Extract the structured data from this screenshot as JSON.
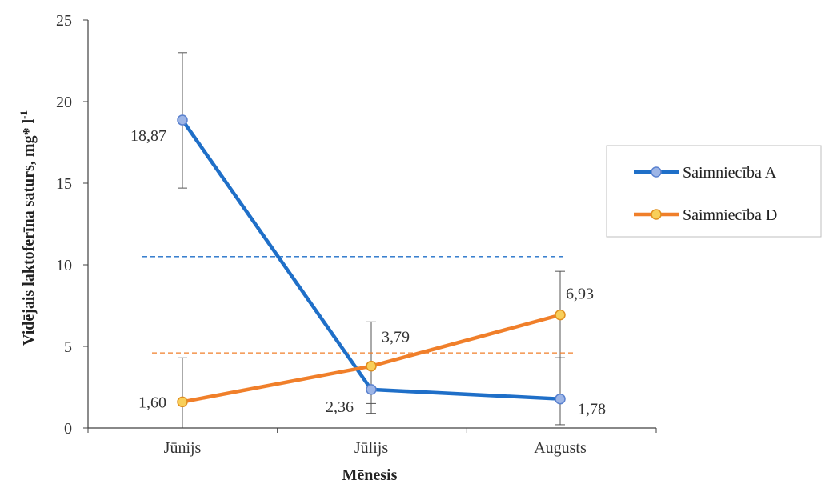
{
  "chart_data": {
    "type": "line",
    "categories": [
      "Jūnijs",
      "Jūlijs",
      "Augusts"
    ],
    "series": [
      {
        "name": "Saimniecība A",
        "color": "#1f6fc8",
        "marker_fill": "#9db5e6",
        "marker_stroke": "#5b82cf",
        "values": [
          18.87,
          2.36,
          1.78
        ],
        "labels": [
          "18,87",
          "2,36",
          "1,78"
        ],
        "error": [
          [
            14.7,
            23.0
          ],
          [
            0.9,
            6.5
          ],
          [
            0.2,
            4.3
          ]
        ],
        "mean_line": 10.5
      },
      {
        "name": "Saimniecība D",
        "color": "#f07f2a",
        "marker_fill": "#f8cf5a",
        "marker_stroke": "#e09020",
        "values": [
          1.6,
          3.79,
          6.93
        ],
        "labels": [
          "1,60",
          "3,79",
          "6,93"
        ],
        "error": [
          [
            -0.5,
            4.3
          ],
          [
            1.5,
            6.5
          ],
          [
            4.3,
            9.6
          ]
        ],
        "mean_line": 4.6
      }
    ],
    "ylim": [
      0,
      25
    ],
    "yticks": [
      "0",
      "5",
      "10",
      "15",
      "20",
      "25"
    ],
    "xlabel": "Mēnesis",
    "ylabel": "Vidējais laktoferīna saturs,  mg* l",
    "ylabel_sup": "-1",
    "legend_position": "right",
    "grid": false
  }
}
